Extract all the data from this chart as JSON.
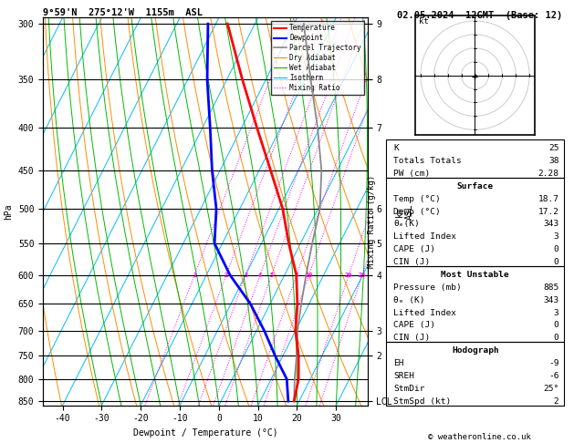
{
  "title_left": "9°59'N  275°12'W  1155m  ASL",
  "title_right": "02.05.2024  12GMT  (Base: 12)",
  "xlabel": "Dewpoint / Temperature (°C)",
  "pressure_levels": [
    300,
    350,
    400,
    450,
    500,
    550,
    600,
    650,
    700,
    750,
    800,
    850
  ],
  "xlim": [
    -45,
    38
  ],
  "temp_profile": {
    "pressure": [
      850,
      800,
      750,
      700,
      650,
      600,
      550,
      500,
      450,
      400,
      350,
      300
    ],
    "temperature": [
      18.7,
      17.0,
      14.0,
      10.0,
      7.0,
      3.0,
      -3.0,
      -9.0,
      -17.0,
      -26.0,
      -36.0,
      -47.0
    ]
  },
  "dewp_profile": {
    "pressure": [
      850,
      800,
      750,
      700,
      650,
      600,
      550,
      500,
      450,
      400,
      350,
      300
    ],
    "dewpoint": [
      17.2,
      14.0,
      8.0,
      2.0,
      -5.0,
      -14.0,
      -22.0,
      -26.0,
      -32.0,
      -38.0,
      -45.0,
      -52.0
    ]
  },
  "parcel_profile": {
    "pressure": [
      850,
      800,
      750,
      700,
      650,
      600,
      550,
      500,
      450,
      400,
      350,
      300
    ],
    "temperature": [
      18.7,
      16.0,
      13.5,
      10.5,
      8.0,
      5.5,
      3.0,
      0.5,
      -4.0,
      -10.5,
      -18.5,
      -27.5
    ]
  },
  "dry_adiabat_color": "#ff8c00",
  "wet_adiabat_color": "#00bb00",
  "isotherm_color": "#00bbff",
  "mixing_ratio_color": "#ff00ff",
  "temp_color": "#ff0000",
  "dewp_color": "#0000ff",
  "parcel_color": "#888888",
  "stats": {
    "K": 25,
    "Totals_Totals": 38,
    "PW_cm": 2.28,
    "Surface_Temp": 18.7,
    "Surface_Dewp": 17.2,
    "Surface_ThetaE": 343,
    "Surface_LI": 3,
    "Surface_CAPE": 0,
    "Surface_CIN": 0,
    "MU_Pressure": 885,
    "MU_ThetaE": 343,
    "MU_LI": 3,
    "MU_CAPE": 0,
    "MU_CIN": 0,
    "EH": -9,
    "SREH": -6,
    "StmDir": "25°",
    "StmSpd": 2
  },
  "km_labels": {
    "300": "9",
    "350": "8",
    "400": "7",
    "500": "6",
    "550": "5",
    "600": "4",
    "700": "3",
    "750": "2",
    "850": "LCL"
  },
  "mixing_ratios": [
    1,
    2,
    3,
    4,
    5,
    8,
    10,
    20,
    25
  ]
}
